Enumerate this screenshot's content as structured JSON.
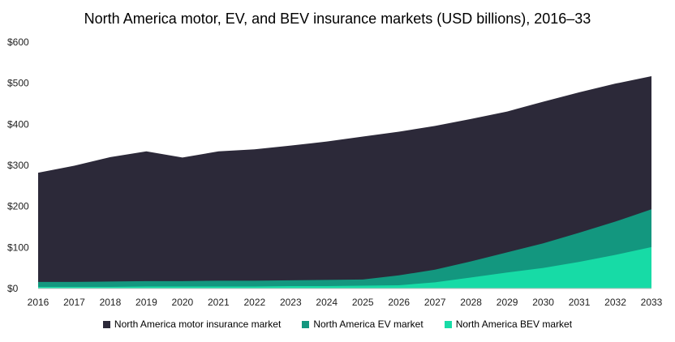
{
  "chart_data": {
    "type": "area",
    "title": "North America motor, EV, and BEV insurance markets (USD billions), 2016–33",
    "xlabel": "",
    "ylabel": "",
    "x": [
      "2016",
      "2017",
      "2018",
      "2019",
      "2020",
      "2021",
      "2022",
      "2023",
      "2024",
      "2025",
      "2026",
      "2027",
      "2028",
      "2029",
      "2030",
      "2031",
      "2032",
      "2033"
    ],
    "ylim": [
      0,
      600
    ],
    "yticks": [
      0,
      100,
      200,
      300,
      400,
      500,
      600
    ],
    "ytick_labels": [
      "$0",
      "$100",
      "$200",
      "$300",
      "$400",
      "$500",
      "$600"
    ],
    "grid": false,
    "stacked": false,
    "legend_position": "bottom",
    "series": [
      {
        "name": "North America motor insurance market",
        "color": "#2c2939",
        "values": [
          282,
          299,
          320,
          334,
          319,
          334,
          339,
          348,
          358,
          370,
          382,
          396,
          413,
          431,
          455,
          478,
          499,
          517
        ]
      },
      {
        "name": "North America EV market",
        "color": "#13977f",
        "values": [
          16,
          16,
          17,
          18,
          18,
          19,
          19,
          20,
          21,
          22,
          32,
          46,
          66,
          88,
          110,
          136,
          163,
          193
        ]
      },
      {
        "name": "North America BEV market",
        "color": "#17dba6",
        "values": [
          4,
          4,
          4,
          5,
          5,
          5,
          5,
          6,
          6,
          7,
          8,
          15,
          27,
          39,
          50,
          65,
          82,
          101
        ]
      }
    ]
  }
}
